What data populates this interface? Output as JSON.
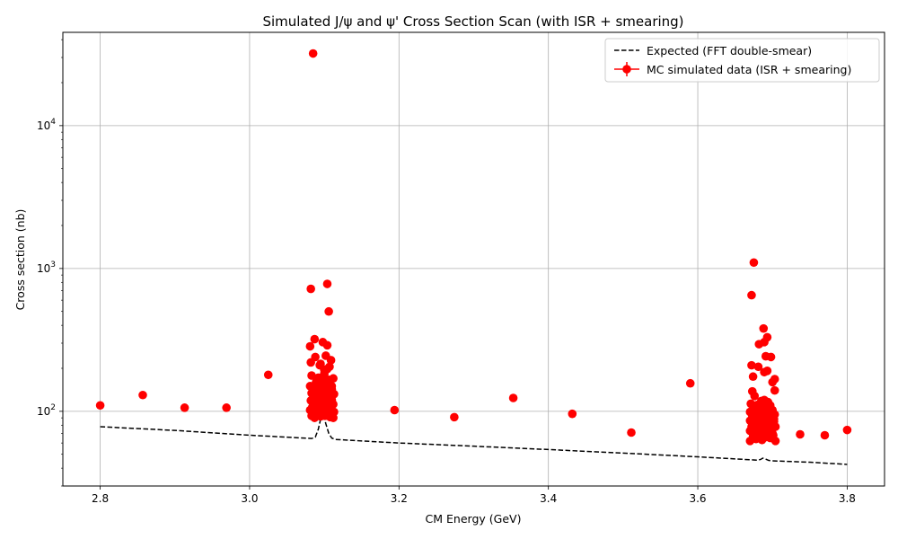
{
  "chart_data": {
    "type": "scatter",
    "title": "Simulated J/ψ and ψ' Cross Section Scan (with ISR + smearing)",
    "xlabel": "CM Energy (GeV)",
    "ylabel": "Cross section (nb)",
    "xlim": [
      2.75,
      3.85
    ],
    "ylim": [
      30,
      45000
    ],
    "yscale": "log",
    "grid": true,
    "legend_position": "upper-right",
    "x_ticks": [
      "2.8",
      "3.0",
      "3.2",
      "3.4",
      "3.6",
      "3.8"
    ],
    "y_ticks": [
      {
        "value": 100,
        "base": "10",
        "exp": "2"
      },
      {
        "value": 1000,
        "base": "10",
        "exp": "3"
      },
      {
        "value": 10000,
        "base": "10",
        "exp": "4"
      }
    ],
    "colors": {
      "expected": "#000000",
      "data": "#ff0000",
      "grid": "#b0b0b0"
    },
    "series": [
      {
        "name": "Expected (FFT double-smear)",
        "style": "dashed-line",
        "points": [
          [
            2.8,
            78
          ],
          [
            2.9,
            73.5
          ],
          [
            3.0,
            68
          ],
          [
            3.06,
            65.5
          ],
          [
            3.083,
            64.5
          ],
          [
            3.088,
            66
          ],
          [
            3.092,
            75
          ],
          [
            3.095,
            88
          ],
          [
            3.097,
            98
          ],
          [
            3.099,
            95
          ],
          [
            3.102,
            82
          ],
          [
            3.106,
            70
          ],
          [
            3.11,
            65
          ],
          [
            3.115,
            63.5
          ],
          [
            3.2,
            60
          ],
          [
            3.3,
            57
          ],
          [
            3.4,
            54
          ],
          [
            3.5,
            51
          ],
          [
            3.6,
            48
          ],
          [
            3.68,
            45.5
          ],
          [
            3.684,
            46
          ],
          [
            3.687,
            47
          ],
          [
            3.69,
            46.5
          ],
          [
            3.695,
            45.3
          ],
          [
            3.7,
            45
          ],
          [
            3.75,
            44
          ],
          [
            3.8,
            42.5
          ]
        ]
      },
      {
        "name": "MC simulated data (ISR + smearing)",
        "style": "markers",
        "points": [
          [
            2.8,
            110
          ],
          [
            2.857,
            130
          ],
          [
            2.913,
            106
          ],
          [
            2.969,
            106
          ],
          [
            3.025,
            180
          ],
          [
            3.194,
            102
          ],
          [
            3.274,
            91
          ],
          [
            3.353,
            124
          ],
          [
            3.432,
            96
          ],
          [
            3.511,
            71
          ],
          [
            3.59,
            157
          ],
          [
            3.737,
            69
          ],
          [
            3.77,
            68
          ],
          [
            3.8,
            74
          ],
          [
            3.085,
            32000
          ],
          [
            3.082,
            720
          ],
          [
            3.104,
            780
          ],
          [
            3.106,
            500
          ],
          [
            3.081,
            285
          ],
          [
            3.087,
            320
          ],
          [
            3.098,
            305
          ],
          [
            3.104,
            290
          ],
          [
            3.088,
            240
          ],
          [
            3.102,
            245
          ],
          [
            3.109,
            228
          ],
          [
            3.082,
            220
          ],
          [
            3.095,
            215
          ],
          [
            3.107,
            205
          ],
          [
            3.1,
            195
          ],
          [
            3.083,
            178
          ],
          [
            3.092,
            172
          ],
          [
            3.106,
            166
          ],
          [
            3.112,
            170
          ],
          [
            3.098,
            162
          ],
          [
            3.089,
            156
          ],
          [
            3.081,
            150
          ],
          [
            3.102,
            148
          ],
          [
            3.093,
            145
          ],
          [
            3.11,
            142
          ],
          [
            3.085,
            140
          ],
          [
            3.097,
            138
          ],
          [
            3.105,
            136
          ],
          [
            3.083,
            134
          ],
          [
            3.091,
            131
          ],
          [
            3.108,
            130
          ],
          [
            3.113,
            132
          ],
          [
            3.099,
            128
          ],
          [
            3.087,
            126
          ],
          [
            3.094,
            124
          ],
          [
            3.102,
            122
          ],
          [
            3.11,
            120
          ],
          [
            3.082,
            119
          ],
          [
            3.09,
            117
          ],
          [
            3.106,
            116
          ],
          [
            3.086,
            114
          ],
          [
            3.098,
            113
          ],
          [
            3.112,
            112
          ],
          [
            3.092,
            110
          ],
          [
            3.103,
            109
          ],
          [
            3.084,
            107
          ],
          [
            3.096,
            106
          ],
          [
            3.109,
            105
          ],
          [
            3.088,
            104
          ],
          [
            3.1,
            103
          ],
          [
            3.081,
            102
          ],
          [
            3.094,
            101
          ],
          [
            3.107,
            100
          ],
          [
            3.113,
            99
          ],
          [
            3.086,
            98
          ],
          [
            3.098,
            97
          ],
          [
            3.104,
            96
          ],
          [
            3.09,
            95
          ],
          [
            3.111,
            94
          ],
          [
            3.083,
            93
          ],
          [
            3.095,
            92
          ],
          [
            3.108,
            91
          ],
          [
            3.087,
            90
          ],
          [
            3.101,
            93
          ],
          [
            3.112,
            90
          ],
          [
            3.093,
            96
          ],
          [
            3.105,
            99
          ],
          [
            3.084,
            101
          ],
          [
            3.097,
            108
          ],
          [
            3.109,
            112
          ],
          [
            3.091,
            118
          ],
          [
            3.103,
            125
          ],
          [
            3.085,
            133
          ],
          [
            3.096,
            141
          ],
          [
            3.107,
            152
          ],
          [
            3.089,
            160
          ],
          [
            3.1,
            183
          ],
          [
            3.104,
            198
          ],
          [
            3.094,
            210
          ],
          [
            3.11,
            150
          ],
          [
            3.675,
            1100
          ],
          [
            3.672,
            650
          ],
          [
            3.688,
            380
          ],
          [
            3.693,
            330
          ],
          [
            3.689,
            305
          ],
          [
            3.682,
            295
          ],
          [
            3.691,
            243
          ],
          [
            3.698,
            240
          ],
          [
            3.672,
            210
          ],
          [
            3.681,
            205
          ],
          [
            3.693,
            192
          ],
          [
            3.689,
            188
          ],
          [
            3.674,
            175
          ],
          [
            3.703,
            168
          ],
          [
            3.7,
            160
          ],
          [
            3.673,
            138
          ],
          [
            3.703,
            140
          ],
          [
            3.676,
            128
          ],
          [
            3.689,
            120
          ],
          [
            3.685,
            118
          ],
          [
            3.694,
            116
          ],
          [
            3.671,
            113
          ],
          [
            3.68,
            111
          ],
          [
            3.697,
            110
          ],
          [
            3.687,
            108
          ],
          [
            3.676,
            106
          ],
          [
            3.692,
            104
          ],
          [
            3.7,
            102
          ],
          [
            3.683,
            101
          ],
          [
            3.67,
            99
          ],
          [
            3.689,
            98
          ],
          [
            3.696,
            97
          ],
          [
            3.678,
            96
          ],
          [
            3.703,
            95
          ],
          [
            3.685,
            94
          ],
          [
            3.673,
            93
          ],
          [
            3.691,
            92
          ],
          [
            3.699,
            91
          ],
          [
            3.681,
            90
          ],
          [
            3.687,
            89
          ],
          [
            3.694,
            88
          ],
          [
            3.676,
            87
          ],
          [
            3.67,
            86
          ],
          [
            3.702,
            85
          ],
          [
            3.684,
            84
          ],
          [
            3.69,
            83
          ],
          [
            3.697,
            82
          ],
          [
            3.679,
            81
          ],
          [
            3.673,
            80
          ],
          [
            3.687,
            79
          ],
          [
            3.704,
            78
          ],
          [
            3.693,
            77
          ],
          [
            3.682,
            76
          ],
          [
            3.676,
            75
          ],
          [
            3.699,
            74
          ],
          [
            3.67,
            73
          ],
          [
            3.688,
            72
          ],
          [
            3.695,
            71
          ],
          [
            3.68,
            70
          ],
          [
            3.684,
            69
          ],
          [
            3.701,
            68
          ],
          [
            3.674,
            67
          ],
          [
            3.691,
            66
          ],
          [
            3.697,
            65
          ],
          [
            3.678,
            64
          ],
          [
            3.686,
            63
          ],
          [
            3.704,
            62
          ],
          [
            3.67,
            62
          ],
          [
            3.683,
            65
          ],
          [
            3.693,
            67
          ],
          [
            3.7,
            70
          ],
          [
            3.677,
            72
          ],
          [
            3.689,
            75
          ],
          [
            3.672,
            78
          ],
          [
            3.696,
            80
          ],
          [
            3.681,
            84
          ],
          [
            3.702,
            88
          ],
          [
            3.686,
            92
          ],
          [
            3.675,
            96
          ],
          [
            3.692,
            100
          ],
          [
            3.698,
            104
          ],
          [
            3.684,
            107
          ],
          [
            3.678,
            110
          ],
          [
            3.69,
            86
          ],
          [
            3.695,
            74
          ]
        ]
      }
    ]
  }
}
